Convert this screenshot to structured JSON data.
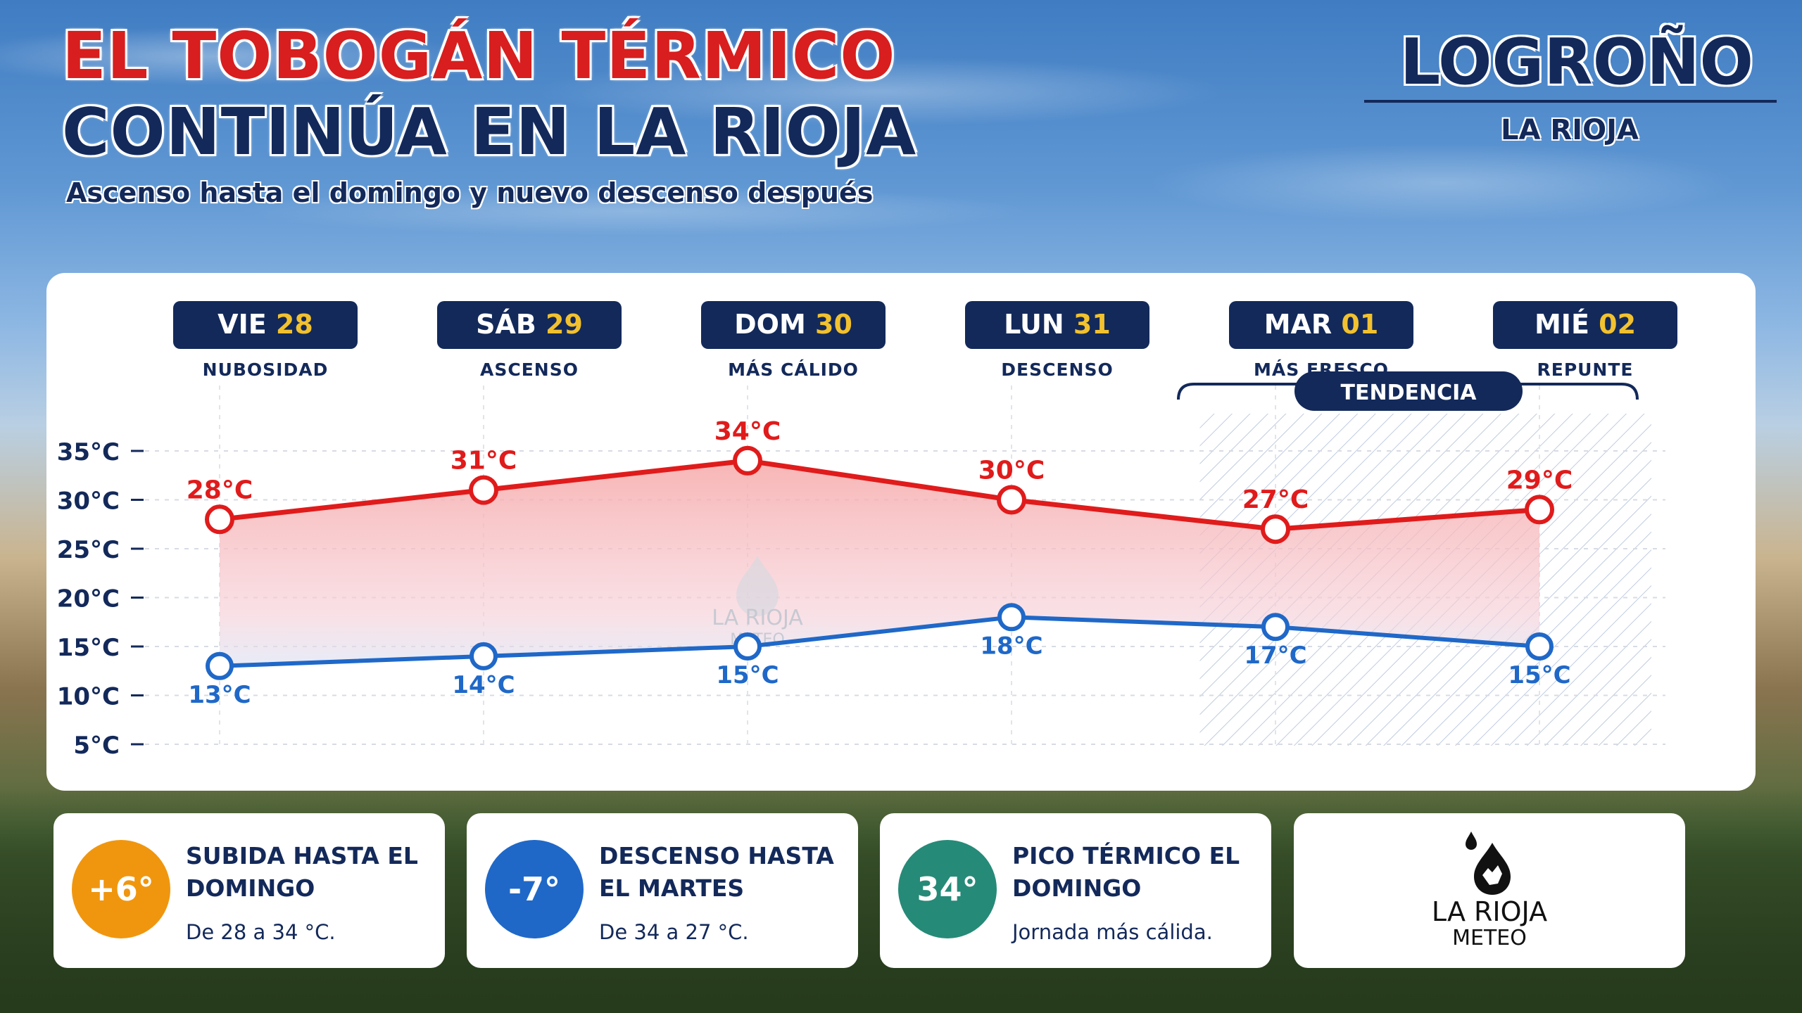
{
  "header": {
    "title_line1": "EL TOBOGÁN TÉRMICO",
    "title_line2": "CONTINÚA EN LA RIOJA",
    "subtitle": "Ascenso hasta el domingo y nuevo descenso después",
    "city": "LOGROÑO",
    "region": "LA RIOJA"
  },
  "chart_data": {
    "type": "line",
    "days": [
      {
        "day": "VIE",
        "num": "28",
        "note": "NUBOSIDAD"
      },
      {
        "day": "SÁB",
        "num": "29",
        "note": "ASCENSO"
      },
      {
        "day": "DOM",
        "num": "30",
        "note": "MÁS CÁLIDO"
      },
      {
        "day": "LUN",
        "num": "31",
        "note": "DESCENSO"
      },
      {
        "day": "MAR",
        "num": "01",
        "note": "MÁS FRESCO"
      },
      {
        "day": "MIÉ",
        "num": "02",
        "note": "REPUNTE"
      }
    ],
    "series": [
      {
        "values": [
          28,
          31,
          34,
          30,
          27,
          29
        ],
        "color": "#e01b1b"
      },
      {
        "values": [
          13,
          14,
          15,
          18,
          17,
          15
        ],
        "color": "#1f68c8"
      }
    ],
    "value_suffix": "°C",
    "yticks": [
      "35°C",
      "30°C",
      "25°C",
      "20°C",
      "15°C",
      "10°C",
      "5°C"
    ],
    "ytick_values": [
      35,
      30,
      25,
      20,
      15,
      10,
      5
    ],
    "ylim": [
      5,
      35
    ],
    "tendency_label": "TENDENCIA",
    "tendency_start_index": 4,
    "watermark_line1": "LA RIOJA",
    "watermark_line2": "METEO",
    "colors": {
      "navy": "#13295a",
      "accent": "#f2c12e",
      "high": "#e01b1b",
      "low": "#1f68c8"
    }
  },
  "cards": [
    {
      "badge": "+6°",
      "title": "SUBIDA HASTA EL DOMINGO",
      "desc": "De 28 a 34 °C.",
      "color": "#f0960e"
    },
    {
      "badge": "-7°",
      "title": "DESCENSO HASTA EL MARTES",
      "desc": "De 34 a 27 °C.",
      "color": "#1f68c8"
    },
    {
      "badge": "34°",
      "title": "PICO TÉRMICO EL DOMINGO",
      "desc": "Jornada más cálida.",
      "color": "#268a78"
    }
  ],
  "logo": {
    "line1": "LA RIOJA",
    "line2": "METEO",
    "icon": "water-drop-icon"
  }
}
